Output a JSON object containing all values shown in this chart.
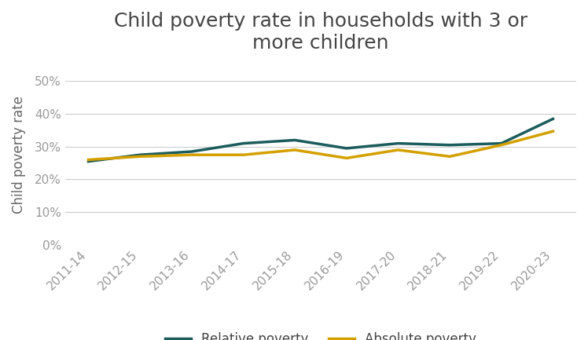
{
  "title": "Child poverty rate in households with 3 or\nmore children",
  "ylabel": "Child poverty rate",
  "categories": [
    "2011-14",
    "2012-15",
    "2013-16",
    "2014-17",
    "2015-18",
    "2016-19",
    "2017-20",
    "2018-21",
    "2019-22",
    "2020-23"
  ],
  "relative_poverty": [
    0.255,
    0.275,
    0.285,
    0.31,
    0.32,
    0.295,
    0.31,
    0.305,
    0.31,
    0.385
  ],
  "absolute_poverty": [
    0.26,
    0.27,
    0.275,
    0.275,
    0.29,
    0.265,
    0.29,
    0.27,
    0.305,
    0.347
  ],
  "relative_color": "#1c5c5c",
  "absolute_color": "#d4a000",
  "legend_labels": [
    "Relative poverty",
    "Absolute poverty"
  ],
  "ylim": [
    0,
    0.55
  ],
  "yticks": [
    0,
    0.1,
    0.2,
    0.3,
    0.4,
    0.5
  ],
  "background_color": "#ffffff",
  "grid_color": "#cccccc",
  "title_fontsize": 18,
  "axis_label_fontsize": 12,
  "tick_fontsize": 11,
  "legend_fontsize": 12,
  "line_width": 2.5
}
